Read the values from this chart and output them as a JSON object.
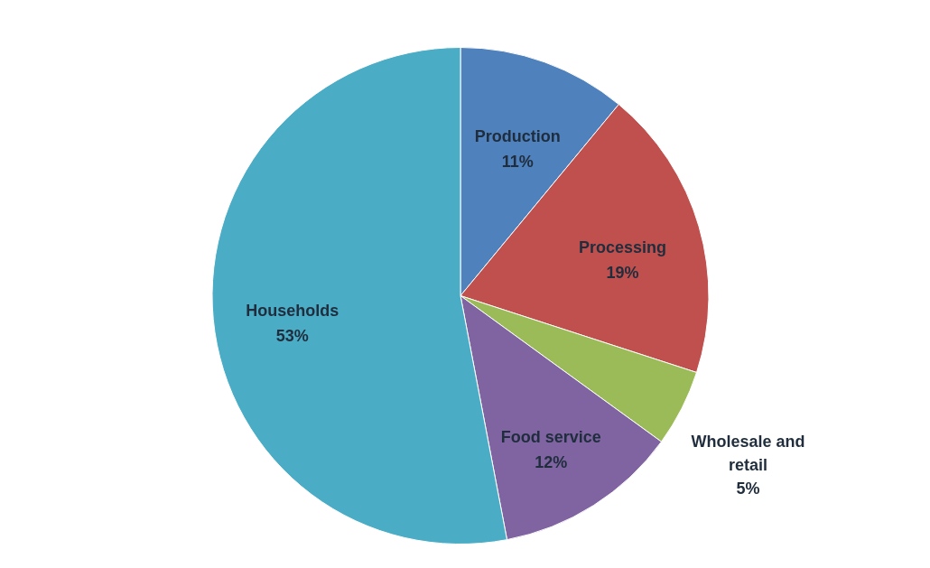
{
  "chart_data": {
    "type": "pie",
    "categories": [
      "Production",
      "Processing",
      "Wholesale and retail",
      "Food service",
      "Households"
    ],
    "values": [
      11,
      19,
      5,
      12,
      53
    ],
    "colors": [
      "#4f81bd",
      "#c0504d",
      "#9bbb59",
      "#8064a2",
      "#4bacc6"
    ],
    "value_labels": [
      "11%",
      "19%",
      "5%",
      "12%",
      "53%"
    ],
    "legend": false
  }
}
